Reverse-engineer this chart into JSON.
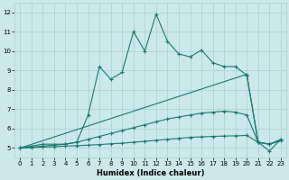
{
  "xlabel": "Humidex (Indice chaleur)",
  "bg_color": "#cce8ea",
  "grid_color": "#aacfd2",
  "line_color": "#1a7a6e",
  "xlim": [
    -0.5,
    23.5
  ],
  "ylim": [
    4.5,
    12.5
  ],
  "xticks": [
    0,
    1,
    2,
    3,
    4,
    5,
    6,
    7,
    8,
    9,
    10,
    11,
    12,
    13,
    14,
    15,
    16,
    17,
    18,
    19,
    20,
    21,
    22,
    23
  ],
  "yticks": [
    5,
    6,
    7,
    8,
    9,
    10,
    11,
    12
  ],
  "series": [
    {
      "x": [
        0,
        2,
        4,
        5,
        6,
        7,
        8,
        9,
        10,
        11,
        12,
        13,
        14,
        15,
        16,
        17,
        18,
        19,
        20,
        21,
        22,
        23
      ],
      "y": [
        5.0,
        5.2,
        5.2,
        5.3,
        6.7,
        9.2,
        8.55,
        8.9,
        11.0,
        10.0,
        11.9,
        10.5,
        9.85,
        9.7,
        10.05,
        9.4,
        9.2,
        9.2,
        8.75,
        5.3,
        4.85,
        5.45
      ]
    },
    {
      "x": [
        0,
        20,
        21,
        22,
        23
      ],
      "y": [
        5.0,
        8.8,
        5.3,
        5.2,
        5.45
      ]
    },
    {
      "x": [
        0,
        1,
        2,
        3,
        4,
        5,
        6,
        7,
        8,
        9,
        10,
        11,
        12,
        13,
        14,
        15,
        16,
        17,
        18,
        19,
        20,
        21,
        22,
        23
      ],
      "y": [
        5.0,
        5.05,
        5.1,
        5.15,
        5.2,
        5.3,
        5.45,
        5.6,
        5.75,
        5.9,
        6.05,
        6.2,
        6.35,
        6.5,
        6.6,
        6.7,
        6.8,
        6.85,
        6.9,
        6.85,
        6.7,
        5.3,
        5.2,
        5.4
      ]
    },
    {
      "x": [
        0,
        1,
        2,
        3,
        4,
        5,
        6,
        7,
        8,
        9,
        10,
        11,
        12,
        13,
        14,
        15,
        16,
        17,
        18,
        19,
        20,
        21,
        22,
        23
      ],
      "y": [
        5.0,
        5.02,
        5.05,
        5.07,
        5.1,
        5.12,
        5.15,
        5.18,
        5.22,
        5.25,
        5.3,
        5.35,
        5.4,
        5.45,
        5.5,
        5.55,
        5.58,
        5.6,
        5.62,
        5.63,
        5.65,
        5.3,
        5.2,
        5.38
      ]
    }
  ]
}
